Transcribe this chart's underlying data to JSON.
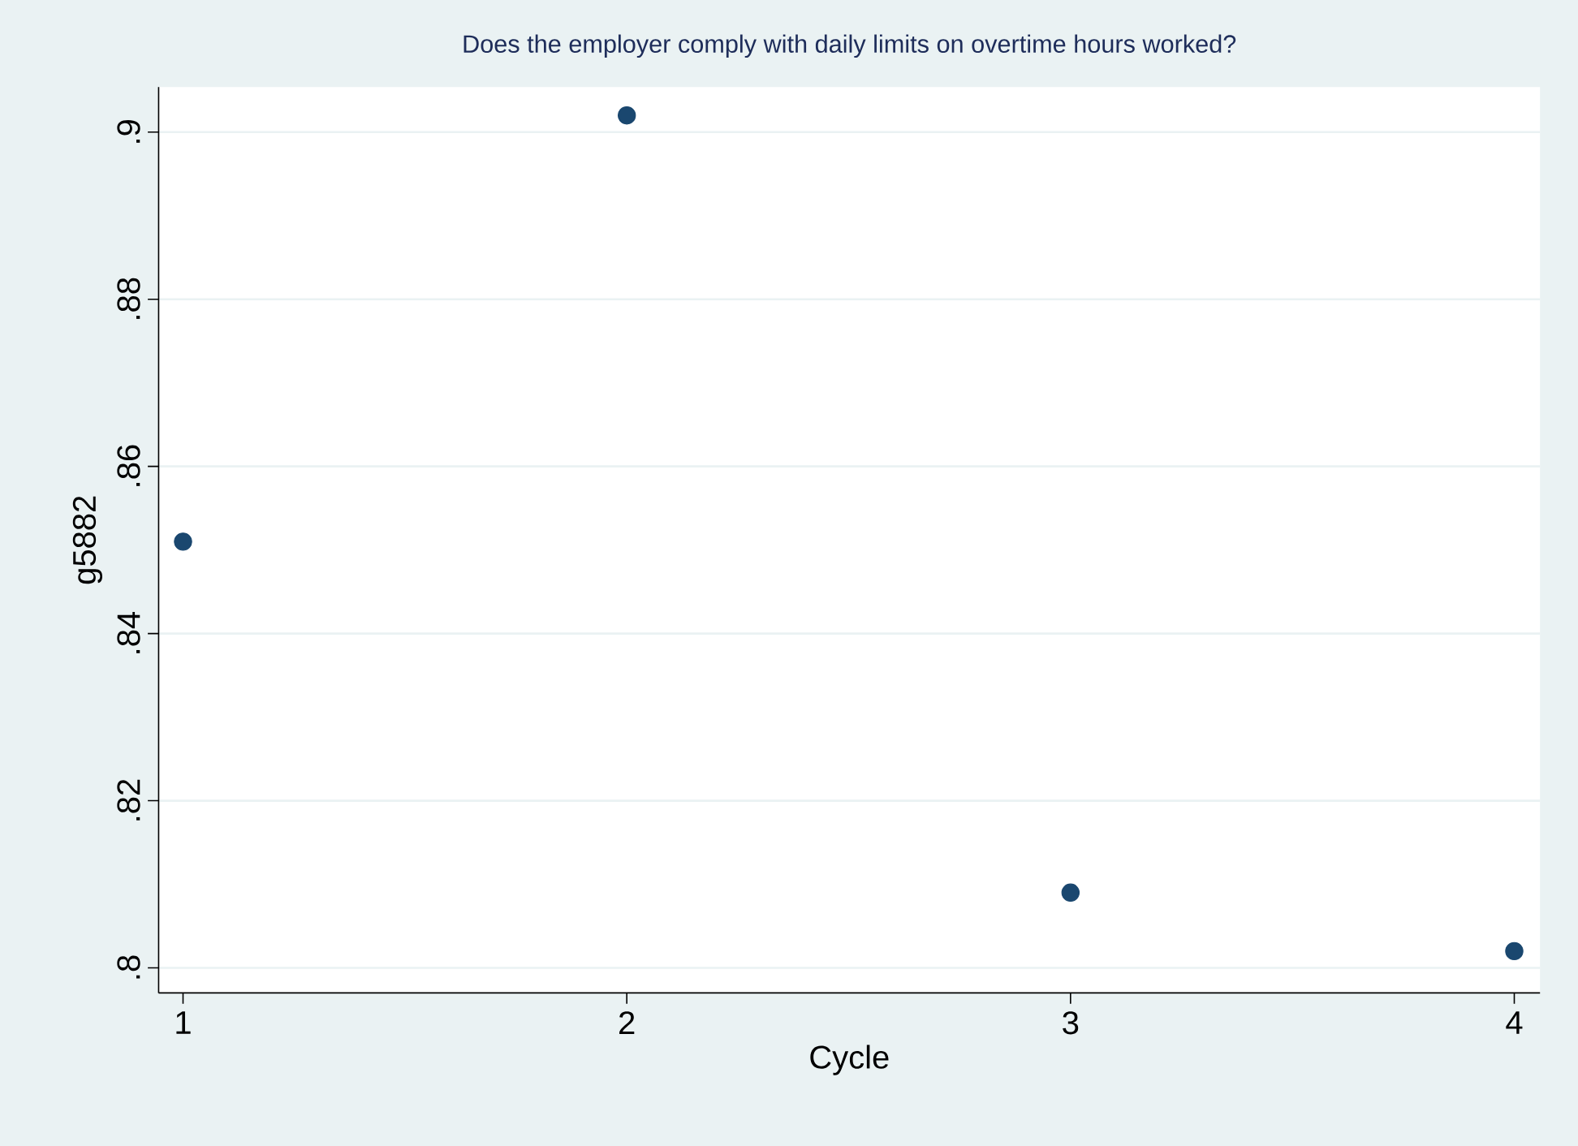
{
  "chart_data": {
    "type": "scatter",
    "title": "Does the employer comply with daily limits on overtime hours worked?",
    "xlabel": "Cycle",
    "ylabel": "g5882",
    "x": [
      1,
      2,
      3,
      4
    ],
    "series": [
      {
        "color": "#1a476f",
        "values": [
          0.851,
          0.902,
          0.809,
          0.802
        ]
      }
    ],
    "xlim": [
      0.945,
      4.058
    ],
    "ylim": [
      0.797,
      0.9054
    ],
    "xticks": [
      1,
      2,
      3,
      4
    ],
    "yticks": [
      {
        "value": 0.8,
        "label": ".8"
      },
      {
        "value": 0.82,
        "label": ".82"
      },
      {
        "value": 0.84,
        "label": ".84"
      },
      {
        "value": 0.86,
        "label": ".86"
      },
      {
        "value": 0.88,
        "label": ".88"
      },
      {
        "value": 0.9,
        "label": ".9"
      }
    ],
    "grid": "y"
  }
}
